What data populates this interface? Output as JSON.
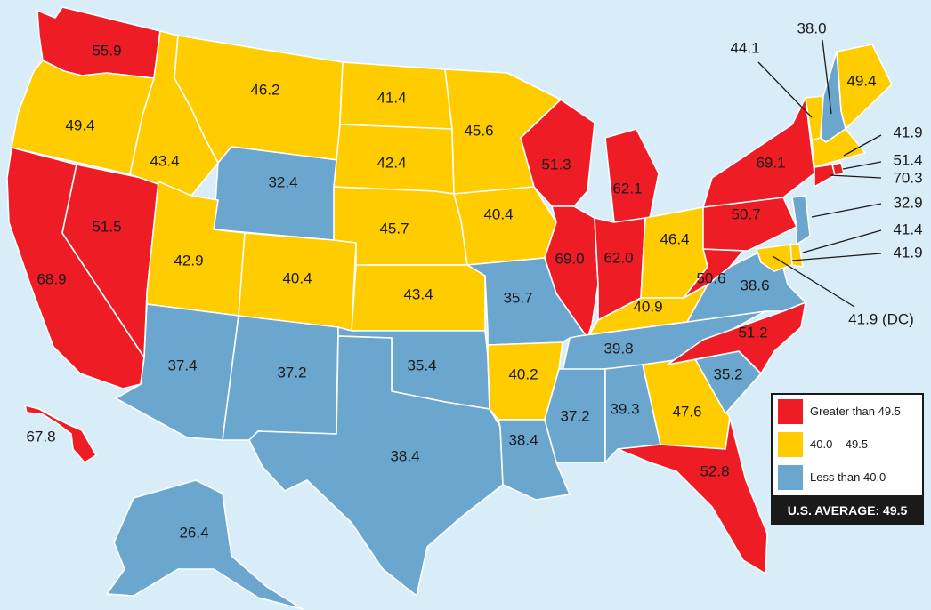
{
  "colors": {
    "background": "#d8edf8",
    "high": "#ee1c25",
    "mid": "#ffcc00",
    "low": "#6aa6cd",
    "text": "#1a1a1a"
  },
  "legend": {
    "items": [
      {
        "label": "Greater than 49.5",
        "color": "#ee1c25"
      },
      {
        "label": "40.0 – 49.5",
        "color": "#ffcc00"
      },
      {
        "label": "Less than 40.0",
        "color": "#6aa6cd"
      }
    ],
    "average": "U.S. AVERAGE: 49.5"
  },
  "states": [
    {
      "id": "WA",
      "value": "55.9",
      "cat": "high"
    },
    {
      "id": "OR",
      "value": "49.4",
      "cat": "mid"
    },
    {
      "id": "CA",
      "value": "68.9",
      "cat": "high"
    },
    {
      "id": "NV",
      "value": "51.5",
      "cat": "high"
    },
    {
      "id": "ID",
      "value": "43.4",
      "cat": "mid"
    },
    {
      "id": "MT",
      "value": "46.2",
      "cat": "mid"
    },
    {
      "id": "WY",
      "value": "32.4",
      "cat": "low"
    },
    {
      "id": "UT",
      "value": "42.9",
      "cat": "mid"
    },
    {
      "id": "CO",
      "value": "40.4",
      "cat": "mid"
    },
    {
      "id": "AZ",
      "value": "37.4",
      "cat": "low"
    },
    {
      "id": "NM",
      "value": "37.2",
      "cat": "low"
    },
    {
      "id": "ND",
      "value": "41.4",
      "cat": "mid"
    },
    {
      "id": "SD",
      "value": "42.4",
      "cat": "mid"
    },
    {
      "id": "NE",
      "value": "45.7",
      "cat": "mid"
    },
    {
      "id": "KS",
      "value": "43.4",
      "cat": "mid"
    },
    {
      "id": "OK",
      "value": "35.4",
      "cat": "low"
    },
    {
      "id": "TX",
      "value": "38.4",
      "cat": "low"
    },
    {
      "id": "MN",
      "value": "45.6",
      "cat": "mid"
    },
    {
      "id": "IA",
      "value": "40.4",
      "cat": "mid"
    },
    {
      "id": "MO",
      "value": "35.7",
      "cat": "low"
    },
    {
      "id": "AR",
      "value": "40.2",
      "cat": "mid"
    },
    {
      "id": "LA",
      "value": "38.4",
      "cat": "low"
    },
    {
      "id": "WI",
      "value": "51.3",
      "cat": "high"
    },
    {
      "id": "IL",
      "value": "69.0",
      "cat": "high"
    },
    {
      "id": "MI",
      "value": "62.1",
      "cat": "high"
    },
    {
      "id": "IN",
      "value": "62.0",
      "cat": "high"
    },
    {
      "id": "OH",
      "value": "46.4",
      "cat": "mid"
    },
    {
      "id": "KY",
      "value": "40.9",
      "cat": "mid"
    },
    {
      "id": "TN",
      "value": "39.8",
      "cat": "low"
    },
    {
      "id": "MS",
      "value": "37.2",
      "cat": "low"
    },
    {
      "id": "AL",
      "value": "39.3",
      "cat": "low"
    },
    {
      "id": "GA",
      "value": "47.6",
      "cat": "mid"
    },
    {
      "id": "FL",
      "value": "52.8",
      "cat": "high"
    },
    {
      "id": "SC",
      "value": "35.2",
      "cat": "low"
    },
    {
      "id": "NC",
      "value": "51.2",
      "cat": "high"
    },
    {
      "id": "VA",
      "value": "38.6",
      "cat": "low"
    },
    {
      "id": "WV",
      "value": "50.6",
      "cat": "high"
    },
    {
      "id": "PA",
      "value": "50.7",
      "cat": "high"
    },
    {
      "id": "NY",
      "value": "69.1",
      "cat": "high"
    },
    {
      "id": "ME",
      "value": "49.4",
      "cat": "mid"
    },
    {
      "id": "AK",
      "value": "26.4",
      "cat": "low"
    },
    {
      "id": "HI",
      "value": "67.8",
      "cat": "high"
    },
    {
      "id": "VT",
      "value": "44.1",
      "cat": "mid"
    },
    {
      "id": "NH",
      "value": "38.0",
      "cat": "low"
    },
    {
      "id": "MA",
      "value": "41.9",
      "cat": "mid"
    },
    {
      "id": "RI",
      "value": "51.4",
      "cat": "high"
    },
    {
      "id": "CT",
      "value": "70.3",
      "cat": "high"
    },
    {
      "id": "NJ",
      "value": "32.9",
      "cat": "low"
    },
    {
      "id": "DE",
      "value": "41.4",
      "cat": "mid"
    },
    {
      "id": "MD",
      "value": "41.9",
      "cat": "mid"
    },
    {
      "id": "DC",
      "value": "41.9 (DC)",
      "cat": "mid"
    }
  ]
}
